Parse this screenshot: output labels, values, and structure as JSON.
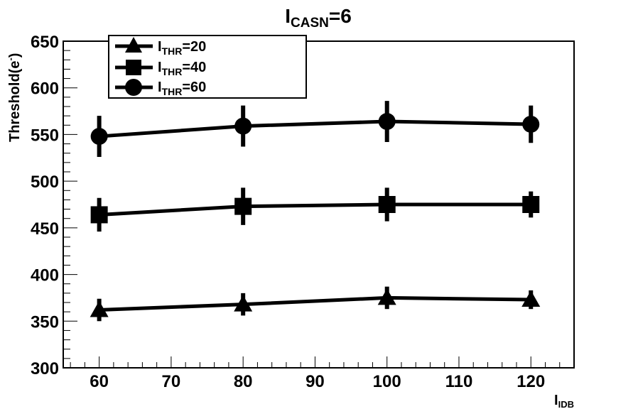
{
  "chart_data": {
    "type": "line",
    "title": {
      "main": "I",
      "sub": "CASN",
      "suffix": "=6"
    },
    "xlabel": {
      "main": "I",
      "sub": "IDB"
    },
    "ylabel": {
      "main": "Threshold(e",
      "sup": "-",
      "suffix": ")"
    },
    "xlim": [
      55,
      126
    ],
    "ylim": [
      300,
      650
    ],
    "x_ticks": [
      60,
      70,
      80,
      90,
      100,
      110,
      120
    ],
    "y_ticks": [
      300,
      350,
      400,
      450,
      500,
      550,
      600,
      650
    ],
    "x": [
      60,
      80,
      100,
      120
    ],
    "series": [
      {
        "name": {
          "main": "I",
          "sub": "THR",
          "suffix": "=20"
        },
        "marker": "triangle",
        "values": [
          362,
          368,
          375,
          373
        ],
        "errors": [
          12,
          12,
          12,
          10
        ]
      },
      {
        "name": {
          "main": "I",
          "sub": "THR",
          "suffix": "=40"
        },
        "marker": "square",
        "values": [
          464,
          473,
          475,
          475
        ],
        "errors": [
          18,
          20,
          18,
          14
        ]
      },
      {
        "name": {
          "main": "I",
          "sub": "THR",
          "suffix": "=60"
        },
        "marker": "circle",
        "values": [
          548,
          559,
          564,
          561
        ],
        "errors": [
          22,
          22,
          22,
          20
        ]
      }
    ],
    "grid": false,
    "legend_position": "top-left",
    "colors": {
      "line": "#000000",
      "background": "#ffffff"
    }
  }
}
